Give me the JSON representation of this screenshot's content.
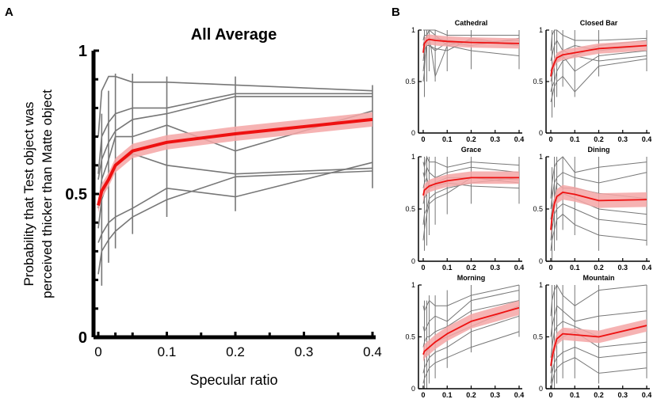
{
  "panel_labels": {
    "a": "A",
    "b": "B"
  },
  "colors": {
    "mean": "#ee1111",
    "band": "#f4a6a6",
    "subject": "#777777",
    "axis": "#000000"
  },
  "chart_data": [
    {
      "type": "line",
      "title": "All Average",
      "xlabel": "Specular ratio",
      "ylabel": "Probability that Test object was perceived thicker than Matte object",
      "ylabel_lines": [
        "Probability that Test object was",
        "perceived thicker than Matte object"
      ],
      "xlim": [
        0,
        0.4
      ],
      "ylim": [
        0,
        1
      ],
      "xticks": [
        0,
        0.1,
        0.2,
        0.3,
        0.4
      ],
      "xtick_labels": [
        "0",
        "0.1",
        "0.2",
        "0.3",
        "0.4"
      ],
      "yticks": [
        0,
        0.5,
        1
      ],
      "ytick_labels": [
        "0",
        "0.5",
        "1"
      ],
      "x": [
        0,
        0.005,
        0.015,
        0.025,
        0.05,
        0.1,
        0.2,
        0.4
      ],
      "mean": [
        0.46,
        0.51,
        0.55,
        0.6,
        0.65,
        0.68,
        0.71,
        0.76
      ],
      "band_halfwidth": 0.025,
      "subjects": [
        {
          "values": [
            0.7,
            0.86,
            0.91,
            0.91,
            0.89,
            0.89,
            0.88,
            0.86
          ]
        },
        {
          "values": [
            0.57,
            0.7,
            0.75,
            0.78,
            0.8,
            0.8,
            0.85,
            0.85
          ]
        },
        {
          "values": [
            0.55,
            0.62,
            0.68,
            0.72,
            0.76,
            0.78,
            0.84,
            0.84
          ]
        },
        {
          "values": [
            0.45,
            0.55,
            0.62,
            0.7,
            0.7,
            0.74,
            0.65,
            0.79
          ]
        },
        {
          "values": [
            0.38,
            0.48,
            0.55,
            0.6,
            0.64,
            0.6,
            0.57,
            0.59
          ]
        },
        {
          "values": [
            0.33,
            0.36,
            0.4,
            0.42,
            0.45,
            0.52,
            0.49,
            0.61
          ]
        },
        {
          "values": [
            0.22,
            0.3,
            0.34,
            0.37,
            0.42,
            0.48,
            0.56,
            0.58
          ]
        }
      ],
      "errorbars": [
        {
          "x": 0.005,
          "low": 0.18,
          "high": 0.78
        },
        {
          "x": 0.015,
          "low": 0.26,
          "high": 0.86
        },
        {
          "x": 0.025,
          "low": 0.31,
          "high": 0.92
        },
        {
          "x": 0.05,
          "low": 0.36,
          "high": 0.92
        },
        {
          "x": 0.1,
          "low": 0.42,
          "high": 0.91
        },
        {
          "x": 0.2,
          "low": 0.44,
          "high": 0.91
        },
        {
          "x": 0.4,
          "low": 0.52,
          "high": 0.88
        }
      ]
    },
    {
      "type": "line",
      "title": "Cathedral",
      "xlim": [
        0,
        0.4
      ],
      "ylim": [
        0,
        1
      ],
      "xticks": [
        0,
        0.1,
        0.2,
        0.3,
        0.4
      ],
      "xtick_labels": [
        "0",
        "0.1",
        "0.2",
        "0.3",
        "0.4"
      ],
      "yticks": [
        0,
        0.5,
        1
      ],
      "ytick_labels": [
        "0",
        "0.5",
        "1"
      ],
      "x": [
        0,
        0.005,
        0.015,
        0.025,
        0.05,
        0.1,
        0.2,
        0.4
      ],
      "mean": [
        0.78,
        0.87,
        0.9,
        0.91,
        0.9,
        0.89,
        0.88,
        0.87
      ],
      "band_halfwidth": 0.05,
      "subjects": [
        {
          "values": [
            1.0,
            1.0,
            1.0,
            1.0,
            1.0,
            0.95,
            0.95,
            0.95
          ]
        },
        {
          "values": [
            0.9,
            0.95,
            0.95,
            0.9,
            0.92,
            0.9,
            0.88,
            0.9
          ]
        },
        {
          "values": [
            0.85,
            0.9,
            0.95,
            1.0,
            0.95,
            0.85,
            0.8,
            0.75
          ]
        },
        {
          "values": [
            0.7,
            0.8,
            0.9,
            0.85,
            0.82,
            0.8,
            0.92,
            0.85
          ]
        },
        {
          "values": [
            0.6,
            0.7,
            0.85,
            0.85,
            0.8,
            0.88,
            0.85,
            0.92
          ]
        },
        {
          "values": [
            0.5,
            0.6,
            0.95,
            0.95,
            0.55,
            0.85,
            0.9,
            0.85
          ]
        }
      ],
      "errorbars": [
        {
          "x": 0.005,
          "low": 0.35,
          "high": 1.0
        },
        {
          "x": 0.015,
          "low": 0.5,
          "high": 1.0
        },
        {
          "x": 0.025,
          "low": 0.6,
          "high": 1.0
        },
        {
          "x": 0.05,
          "low": 0.5,
          "high": 1.0
        },
        {
          "x": 0.1,
          "low": 0.6,
          "high": 1.0
        },
        {
          "x": 0.2,
          "low": 0.62,
          "high": 1.0
        },
        {
          "x": 0.4,
          "low": 0.62,
          "high": 1.0
        }
      ]
    },
    {
      "type": "line",
      "title": "Closed Bar",
      "xlim": [
        0,
        0.4
      ],
      "ylim": [
        0,
        1
      ],
      "xticks": [
        0,
        0.1,
        0.2,
        0.3,
        0.4
      ],
      "xtick_labels": [
        "0",
        "0.1",
        "0.2",
        "0.3",
        "0.4"
      ],
      "yticks": [
        0,
        0.5,
        1
      ],
      "ytick_labels": [
        "0",
        "0.5",
        "1"
      ],
      "x": [
        0,
        0.005,
        0.015,
        0.025,
        0.05,
        0.1,
        0.2,
        0.4
      ],
      "mean": [
        0.55,
        0.62,
        0.68,
        0.73,
        0.76,
        0.78,
        0.82,
        0.85
      ],
      "band_halfwidth": 0.05,
      "subjects": [
        {
          "values": [
            0.8,
            0.95,
            1.0,
            1.0,
            0.95,
            0.9,
            0.9,
            0.92
          ]
        },
        {
          "values": [
            0.7,
            0.75,
            0.85,
            0.9,
            0.8,
            0.75,
            0.85,
            0.9
          ]
        },
        {
          "values": [
            0.6,
            0.65,
            0.7,
            0.75,
            0.8,
            0.85,
            0.8,
            0.85
          ]
        },
        {
          "values": [
            0.5,
            0.55,
            0.65,
            0.7,
            0.75,
            0.6,
            0.75,
            0.8
          ]
        },
        {
          "values": [
            0.4,
            0.45,
            0.5,
            0.6,
            0.7,
            0.75,
            0.7,
            0.75
          ]
        },
        {
          "values": [
            0.3,
            0.35,
            0.45,
            0.5,
            0.55,
            0.4,
            0.65,
            0.72
          ]
        }
      ],
      "errorbars": [
        {
          "x": 0.005,
          "low": 0.15,
          "high": 1.0
        },
        {
          "x": 0.015,
          "low": 0.25,
          "high": 1.0
        },
        {
          "x": 0.025,
          "low": 0.35,
          "high": 1.0
        },
        {
          "x": 0.05,
          "low": 0.45,
          "high": 1.0
        },
        {
          "x": 0.1,
          "low": 0.35,
          "high": 1.0
        },
        {
          "x": 0.2,
          "low": 0.55,
          "high": 1.0
        },
        {
          "x": 0.4,
          "low": 0.6,
          "high": 1.0
        }
      ]
    },
    {
      "type": "line",
      "title": "Grace",
      "xlim": [
        0,
        0.4
      ],
      "ylim": [
        0,
        1
      ],
      "xticks": [
        0,
        0.1,
        0.2,
        0.3,
        0.4
      ],
      "xtick_labels": [
        "0",
        "0.1",
        "0.2",
        "0.3",
        "0.4"
      ],
      "yticks": [
        0,
        0.5,
        1
      ],
      "ytick_labels": [
        "0",
        "0.5",
        "1"
      ],
      "x": [
        0,
        0.005,
        0.015,
        0.025,
        0.05,
        0.1,
        0.2,
        0.4
      ],
      "mean": [
        0.63,
        0.68,
        0.7,
        0.72,
        0.74,
        0.77,
        0.8,
        0.8
      ],
      "band_halfwidth": 0.06,
      "subjects": [
        {
          "values": [
            0.95,
            0.9,
            1.0,
            0.95,
            0.95,
            0.9,
            0.95,
            0.92
          ]
        },
        {
          "values": [
            0.85,
            0.8,
            0.9,
            0.85,
            0.8,
            0.85,
            0.9,
            0.85
          ]
        },
        {
          "values": [
            0.7,
            0.75,
            0.8,
            0.7,
            0.75,
            0.8,
            0.8,
            0.78
          ]
        },
        {
          "values": [
            0.55,
            0.6,
            0.65,
            0.7,
            0.72,
            0.75,
            0.72,
            0.7
          ]
        },
        {
          "values": [
            0.35,
            0.45,
            0.5,
            0.6,
            0.65,
            0.7,
            0.75,
            0.8
          ]
        },
        {
          "values": [
            0.2,
            0.3,
            0.45,
            0.55,
            0.6,
            0.65,
            0.8,
            0.75
          ]
        }
      ],
      "errorbars": [
        {
          "x": 0.005,
          "low": 0.1,
          "high": 1.0
        },
        {
          "x": 0.015,
          "low": 0.15,
          "high": 1.0
        },
        {
          "x": 0.025,
          "low": 0.25,
          "high": 1.0
        },
        {
          "x": 0.05,
          "low": 0.35,
          "high": 1.0
        },
        {
          "x": 0.1,
          "low": 0.45,
          "high": 1.0
        },
        {
          "x": 0.2,
          "low": 0.55,
          "high": 1.0
        },
        {
          "x": 0.4,
          "low": 0.55,
          "high": 1.0
        }
      ]
    },
    {
      "type": "line",
      "title": "Dining",
      "xlim": [
        0,
        0.4
      ],
      "ylim": [
        0,
        1
      ],
      "xticks": [
        0,
        0.1,
        0.2,
        0.3,
        0.4
      ],
      "xtick_labels": [
        "0",
        "0.1",
        "0.2",
        "0.3",
        "0.4"
      ],
      "yticks": [
        0,
        0.5,
        1
      ],
      "ytick_labels": [
        "0",
        "0.5",
        "1"
      ],
      "x": [
        0,
        0.005,
        0.015,
        0.025,
        0.05,
        0.1,
        0.2,
        0.4
      ],
      "mean": [
        0.3,
        0.42,
        0.55,
        0.62,
        0.66,
        0.64,
        0.58,
        0.59
      ],
      "band_halfwidth": 0.07,
      "subjects": [
        {
          "values": [
            0.6,
            0.75,
            0.9,
            0.95,
            1.0,
            0.85,
            0.9,
            0.95
          ]
        },
        {
          "values": [
            0.5,
            0.6,
            0.75,
            0.8,
            0.85,
            0.8,
            0.75,
            0.85
          ]
        },
        {
          "values": [
            0.4,
            0.5,
            0.6,
            0.75,
            0.7,
            0.7,
            0.65,
            0.6
          ]
        },
        {
          "values": [
            0.3,
            0.4,
            0.55,
            0.6,
            0.65,
            0.6,
            0.5,
            0.45
          ]
        },
        {
          "values": [
            0.2,
            0.3,
            0.45,
            0.5,
            0.55,
            0.5,
            0.4,
            0.35
          ]
        },
        {
          "values": [
            0.1,
            0.2,
            0.3,
            0.4,
            0.45,
            0.35,
            0.25,
            0.2
          ]
        }
      ],
      "errorbars": [
        {
          "x": 0.005,
          "low": 0.0,
          "high": 0.9
        },
        {
          "x": 0.015,
          "low": 0.1,
          "high": 1.0
        },
        {
          "x": 0.025,
          "low": 0.2,
          "high": 1.0
        },
        {
          "x": 0.05,
          "low": 0.3,
          "high": 1.0
        },
        {
          "x": 0.1,
          "low": 0.25,
          "high": 1.0
        },
        {
          "x": 0.2,
          "low": 0.1,
          "high": 1.0
        },
        {
          "x": 0.4,
          "low": 0.15,
          "high": 1.0
        }
      ]
    },
    {
      "type": "line",
      "title": "Morning",
      "xlim": [
        0,
        0.4
      ],
      "ylim": [
        0,
        1
      ],
      "xticks": [
        0,
        0.1,
        0.2,
        0.3,
        0.4
      ],
      "xtick_labels": [
        "0",
        "0.1",
        "0.2",
        "0.3",
        "0.4"
      ],
      "yticks": [
        0,
        0.5,
        1
      ],
      "ytick_labels": [
        "0",
        "0.5",
        "1"
      ],
      "x": [
        0,
        0.005,
        0.015,
        0.025,
        0.05,
        0.1,
        0.2,
        0.4
      ],
      "mean": [
        0.33,
        0.36,
        0.38,
        0.4,
        0.45,
        0.53,
        0.65,
        0.78
      ],
      "band_halfwidth": 0.07,
      "subjects": [
        {
          "values": [
            0.8,
            0.75,
            0.8,
            0.85,
            0.8,
            0.8,
            0.9,
            1.0
          ]
        },
        {
          "values": [
            0.6,
            0.55,
            0.6,
            0.65,
            0.7,
            0.65,
            0.85,
            0.95
          ]
        },
        {
          "values": [
            0.4,
            0.45,
            0.5,
            0.5,
            0.55,
            0.6,
            0.75,
            0.85
          ]
        },
        {
          "values": [
            0.3,
            0.3,
            0.35,
            0.4,
            0.45,
            0.5,
            0.6,
            0.8
          ]
        },
        {
          "values": [
            0.15,
            0.2,
            0.25,
            0.3,
            0.35,
            0.4,
            0.55,
            0.7
          ]
        },
        {
          "values": [
            0.05,
            0.1,
            0.15,
            0.2,
            0.25,
            0.3,
            0.4,
            0.55
          ]
        }
      ],
      "errorbars": [
        {
          "x": 0.005,
          "low": 0.0,
          "high": 0.85
        },
        {
          "x": 0.015,
          "low": 0.0,
          "high": 0.85
        },
        {
          "x": 0.025,
          "low": 0.05,
          "high": 0.9
        },
        {
          "x": 0.05,
          "low": 0.1,
          "high": 0.9
        },
        {
          "x": 0.1,
          "low": 0.2,
          "high": 0.95
        },
        {
          "x": 0.2,
          "low": 0.35,
          "high": 1.0
        },
        {
          "x": 0.4,
          "low": 0.5,
          "high": 1.0
        }
      ]
    },
    {
      "type": "line",
      "title": "Mountain",
      "xlim": [
        0,
        0.4
      ],
      "ylim": [
        0,
        1
      ],
      "xticks": [
        0,
        0.1,
        0.2,
        0.3,
        0.4
      ],
      "xtick_labels": [
        "0",
        "0.1",
        "0.2",
        "0.3",
        "0.4"
      ],
      "yticks": [
        0,
        0.5,
        1
      ],
      "ytick_labels": [
        "0",
        "0.5",
        "1"
      ],
      "x": [
        0,
        0.005,
        0.015,
        0.025,
        0.05,
        0.1,
        0.2,
        0.4
      ],
      "mean": [
        0.22,
        0.3,
        0.4,
        0.48,
        0.53,
        0.52,
        0.5,
        0.61
      ],
      "band_halfwidth": 0.06,
      "subjects": [
        {
          "values": [
            0.7,
            0.85,
            0.95,
            1.0,
            0.9,
            0.8,
            0.95,
            1.0
          ]
        },
        {
          "values": [
            0.5,
            0.6,
            0.7,
            0.8,
            0.75,
            0.65,
            0.7,
            0.75
          ]
        },
        {
          "values": [
            0.3,
            0.4,
            0.55,
            0.6,
            0.65,
            0.6,
            0.5,
            0.6
          ]
        },
        {
          "values": [
            0.15,
            0.25,
            0.35,
            0.45,
            0.5,
            0.55,
            0.4,
            0.45
          ]
        },
        {
          "values": [
            0.05,
            0.15,
            0.25,
            0.3,
            0.35,
            0.4,
            0.3,
            0.35
          ]
        },
        {
          "values": [
            0.0,
            0.05,
            0.15,
            0.2,
            0.25,
            0.3,
            0.15,
            0.2
          ]
        }
      ],
      "errorbars": [
        {
          "x": 0.005,
          "low": 0.0,
          "high": 1.0
        },
        {
          "x": 0.015,
          "low": 0.0,
          "high": 1.0
        },
        {
          "x": 0.025,
          "low": 0.05,
          "high": 1.0
        },
        {
          "x": 0.05,
          "low": 0.1,
          "high": 1.0
        },
        {
          "x": 0.1,
          "low": 0.1,
          "high": 1.0
        },
        {
          "x": 0.2,
          "low": 0.05,
          "high": 1.0
        },
        {
          "x": 0.4,
          "low": 0.1,
          "high": 1.0
        }
      ]
    }
  ]
}
